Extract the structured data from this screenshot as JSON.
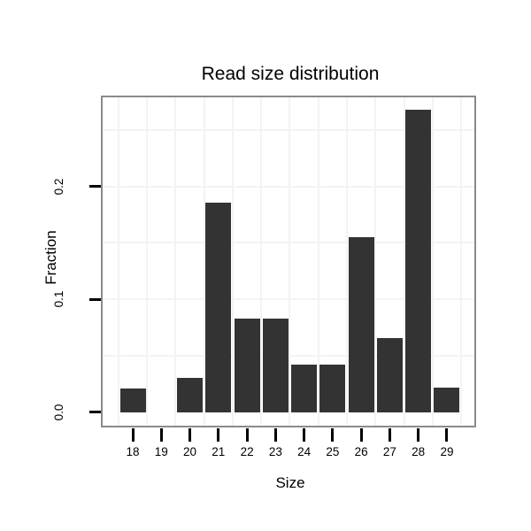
{
  "chart_data": {
    "type": "bar",
    "title": "Read size distribution",
    "xlabel": "Size",
    "ylabel": "Fraction",
    "categories": [
      "18",
      "19",
      "20",
      "21",
      "22",
      "23",
      "24",
      "25",
      "26",
      "27",
      "28",
      "29"
    ],
    "values": [
      0.021,
      0,
      0.03,
      0.186,
      0.083,
      0.083,
      0.042,
      0.042,
      0.155,
      0.066,
      0.268,
      0.022
    ],
    "yticks": [
      0.0,
      0.1,
      0.2
    ],
    "ytick_labels": [
      "0.0",
      "0.1",
      "0.2"
    ],
    "ylim": [
      -0.012,
      0.279
    ],
    "grid": {
      "horizontal_step": 0.05,
      "vertical": "between-categories",
      "color": "#f3f3f3"
    },
    "legend": "none",
    "colors": {
      "bar": "#333333",
      "panel_border": "#8a8a8a",
      "tick": "#000000",
      "background": "#ffffff",
      "text": "#000000"
    }
  }
}
